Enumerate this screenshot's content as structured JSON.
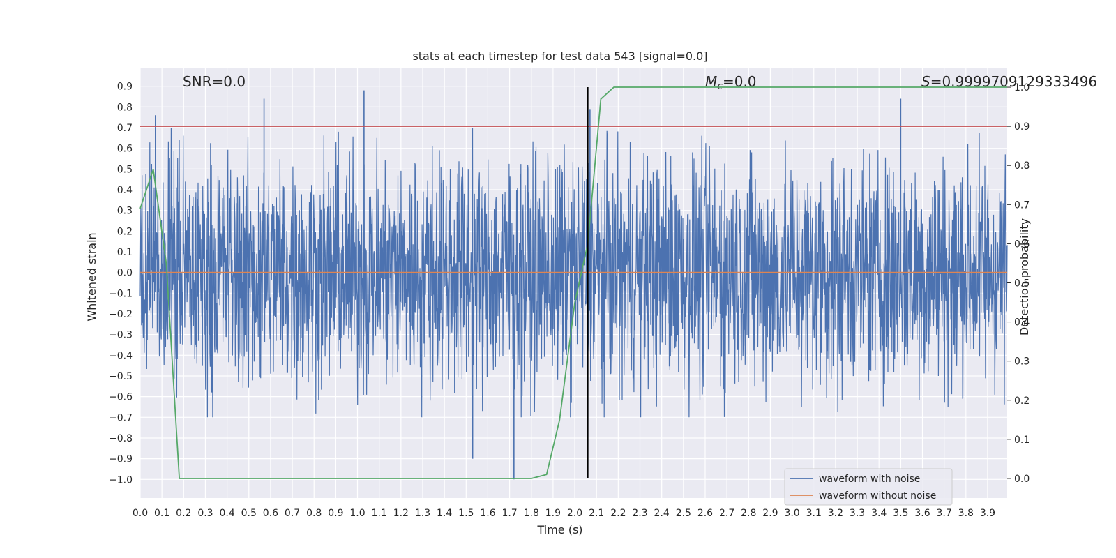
{
  "chart_data": {
    "type": "line",
    "title": "stats at each timestep for test data 543 [signal=0.0]",
    "xlabel": "Time (s)",
    "ylabel": "Whitened strain",
    "y2label": "Detection probability",
    "xlim": [
      0.0,
      3.99
    ],
    "ylim": [
      -1.09,
      0.99
    ],
    "y2lim": [
      -0.05,
      1.05
    ],
    "xticks": [
      "0.0",
      "0.1",
      "0.2",
      "0.3",
      "0.4",
      "0.5",
      "0.6",
      "0.7",
      "0.8",
      "0.9",
      "1.0",
      "1.1",
      "1.2",
      "1.3",
      "1.4",
      "1.5",
      "1.6",
      "1.7",
      "1.8",
      "1.9",
      "2.0",
      "2.1",
      "2.2",
      "2.3",
      "2.4",
      "2.5",
      "2.6",
      "2.7",
      "2.8",
      "2.9",
      "3.0",
      "3.1",
      "3.2",
      "3.3",
      "3.4",
      "3.5",
      "3.6",
      "3.7",
      "3.8",
      "3.9"
    ],
    "yticks": [
      "0.9",
      "0.8",
      "0.7",
      "0.6",
      "0.5",
      "0.4",
      "0.3",
      "0.2",
      "0.1",
      "0.0",
      "-0.1",
      "-0.2",
      "-0.3",
      "-0.4",
      "-0.5",
      "-0.6",
      "-0.7",
      "-0.8",
      "-0.9",
      "-1.0"
    ],
    "y2ticks": [
      "1.0",
      "0.9",
      "0.8",
      "0.7",
      "0.6",
      "0.5",
      "0.4",
      "0.3",
      "0.2",
      "0.1",
      "0.0"
    ],
    "grid": true,
    "legend_position": "lower right",
    "annotations": [
      {
        "text": "SNR=0.0",
        "at": "top-left"
      },
      {
        "math_symbol": "M",
        "math_sub": "c",
        "text": "=0.0",
        "at": "top-center"
      },
      {
        "math_symbol": "S",
        "text": "=0.9999709129333496",
        "at": "top-right"
      }
    ],
    "threshold_line": {
      "y2": 0.9,
      "color": "#c44e52"
    },
    "event_line": {
      "x": 2.06,
      "color": "#000000"
    },
    "series": [
      {
        "name": "waveform with noise",
        "color": "#4c72b0",
        "description_of_values": "dense noise, approx. range",
        "y_range": [
          -1.0,
          0.88
        ],
        "notable_peaks": [
          {
            "x": 0.07,
            "y": 0.76
          },
          {
            "x": 0.57,
            "y": 0.84
          },
          {
            "x": 1.03,
            "y": 0.88
          },
          {
            "x": 1.53,
            "y": -0.9
          },
          {
            "x": 1.72,
            "y": -1.0
          },
          {
            "x": 2.07,
            "y": 0.79
          },
          {
            "x": 3.5,
            "y": 0.84
          }
        ]
      },
      {
        "name": "waveform without noise",
        "color": "#dd8452",
        "y_value": 0.0
      },
      {
        "name": "detection probability",
        "color": "#55a868",
        "axis": "y2",
        "x": [
          0.0,
          0.06,
          0.12,
          0.18,
          0.25,
          0.31,
          1.8,
          1.87,
          1.93,
          2.0,
          2.06,
          2.12,
          2.18,
          3.99
        ],
        "y": [
          0.69,
          0.79,
          0.55,
          0.0,
          0.0,
          0.0,
          0.0,
          0.01,
          0.15,
          0.45,
          0.6,
          0.97,
          1.0,
          1.0
        ]
      }
    ]
  }
}
